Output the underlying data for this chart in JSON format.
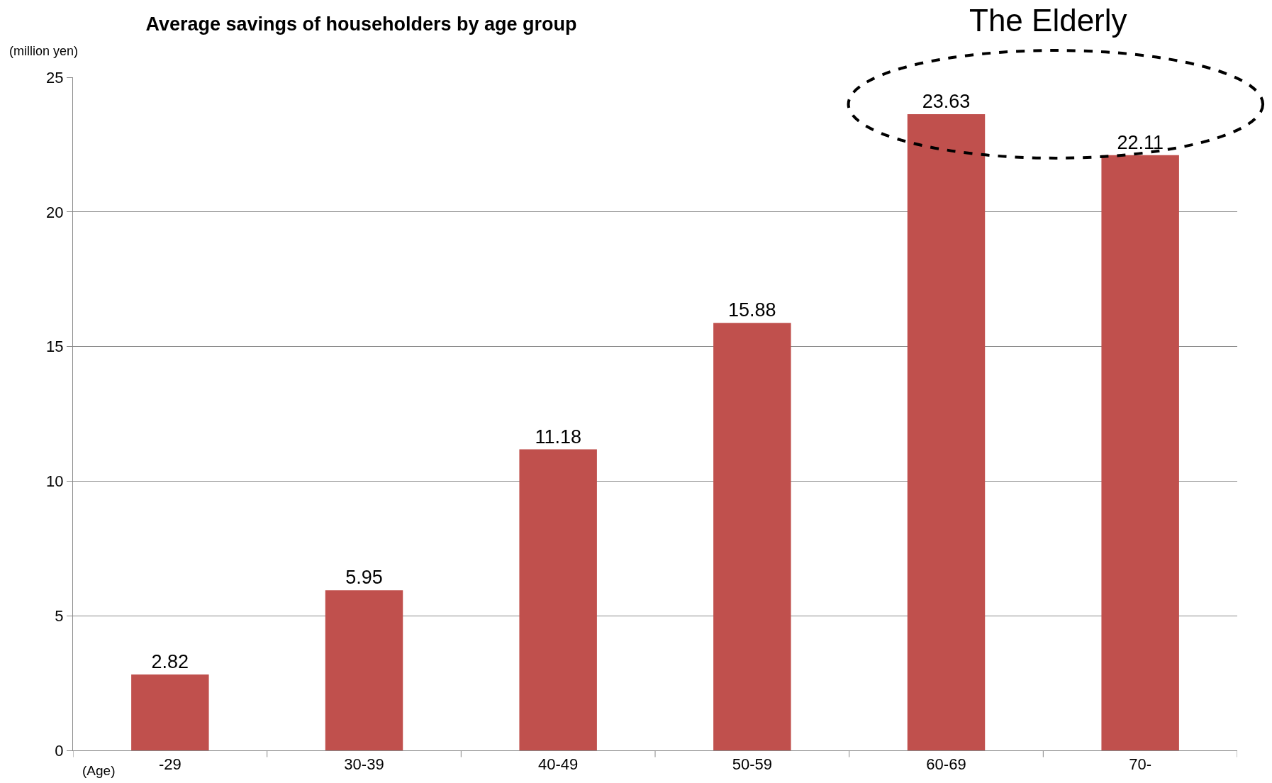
{
  "chart_data": {
    "type": "bar",
    "title": "Average savings of householders by age group",
    "ylabel": "(million yen)",
    "xlabel": "(Age)",
    "categories": [
      "-29",
      "30-39",
      "40-49",
      "50-59",
      "60-69",
      "70-"
    ],
    "values": [
      2.82,
      5.95,
      11.18,
      15.88,
      23.63,
      22.11
    ],
    "color": "#c0504d",
    "ylim": [
      0,
      25
    ],
    "yticks": [
      0,
      5,
      10,
      15,
      20,
      25
    ],
    "grid": "y",
    "data_labels": true,
    "annotations": [
      "The Elderly"
    ]
  }
}
